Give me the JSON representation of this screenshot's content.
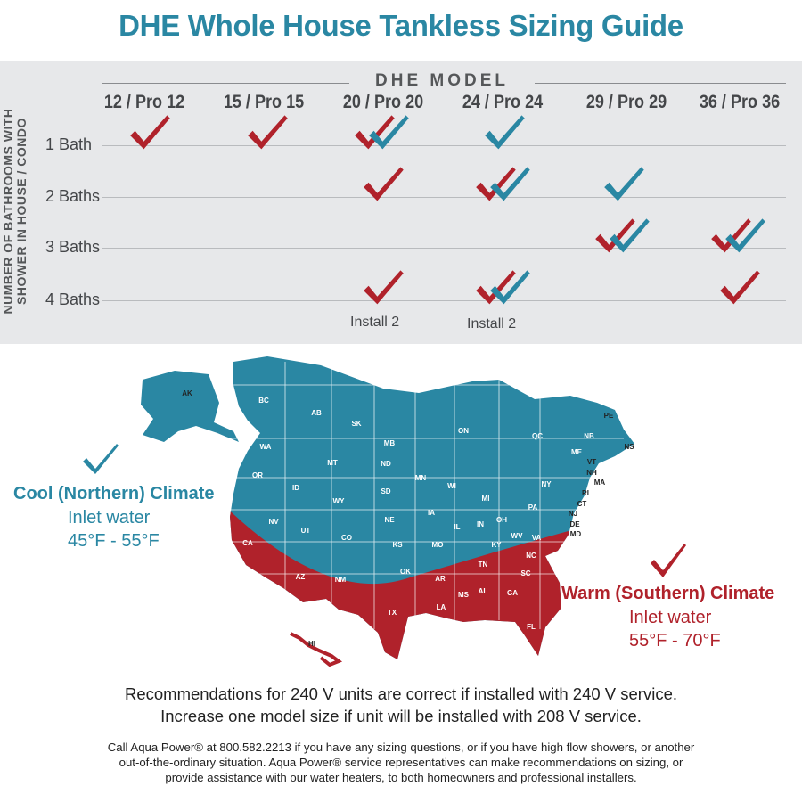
{
  "title": "DHE Whole House Tankless Sizing Guide",
  "table": {
    "header": "DHE MODEL",
    "vertical_label_line1": "NUMBER OF BATHROOMS WITH",
    "vertical_label_line2": "SHOWER IN HOUSE / CONDO",
    "models": [
      "12 / Pro 12",
      "15 / Pro 15",
      "20 / Pro 20",
      "24 / Pro 24",
      "29 / Pro 29",
      "36 / Pro 36"
    ],
    "rows": [
      {
        "label": "1 Bath",
        "cells": [
          "warm",
          "warm",
          "both",
          "cool",
          "",
          ""
        ]
      },
      {
        "label": "2 Baths",
        "cells": [
          "",
          "",
          "warm",
          "both",
          "cool",
          ""
        ]
      },
      {
        "label": "3 Baths",
        "cells": [
          "",
          "",
          "",
          "",
          "both",
          "both"
        ]
      },
      {
        "label": "4 Baths",
        "cells": [
          "",
          "",
          "warm",
          "both",
          "",
          "warm"
        ]
      }
    ],
    "install_note_20": "Install 2",
    "install_note_24": "Install 2"
  },
  "colors": {
    "cool": "#2a87a3",
    "warm": "#b0222b",
    "panel": "#e7e8ea"
  },
  "map": {
    "state_labels": [
      "AK",
      "BC",
      "AB",
      "SK",
      "MB",
      "ON",
      "QC",
      "NB",
      "PE",
      "NS",
      "ME",
      "VT",
      "NH",
      "MA",
      "RI",
      "CT",
      "NY",
      "NJ",
      "PA",
      "DE",
      "MD",
      "WA",
      "MT",
      "ND",
      "MN",
      "WI",
      "MI",
      "OR",
      "ID",
      "WY",
      "SD",
      "IA",
      "IL",
      "IN",
      "OH",
      "NV",
      "UT",
      "CO",
      "NE",
      "KS",
      "MO",
      "KY",
      "WV",
      "VA",
      "CA",
      "AZ",
      "NM",
      "OK",
      "AR",
      "TN",
      "NC",
      "SC",
      "MS",
      "AL",
      "GA",
      "TX",
      "LA",
      "FL",
      "HI"
    ]
  },
  "cool_climate": {
    "title": "Cool (Northern) Climate",
    "line1": "Inlet water",
    "line2": "45°F - 55°F"
  },
  "warm_climate": {
    "title": "Warm (Southern) Climate",
    "line1": "Inlet water",
    "line2": "55°F - 70°F"
  },
  "voltage_note_line1": "Recommendations for 240 V units are correct if installed with 240 V service.",
  "voltage_note_line2": "Increase one model size if unit will be installed with 208 V service.",
  "contact_note_line1": "Call Aqua Power® at 800.582.2213 if you have any sizing questions, or if you have high flow showers, or another",
  "contact_note_line2": "out-of-the-ordinary situation. Aqua Power® service representatives can make recommendations on sizing, or",
  "contact_note_line3": "provide assistance with our water heaters, to both homeowners and professional installers."
}
